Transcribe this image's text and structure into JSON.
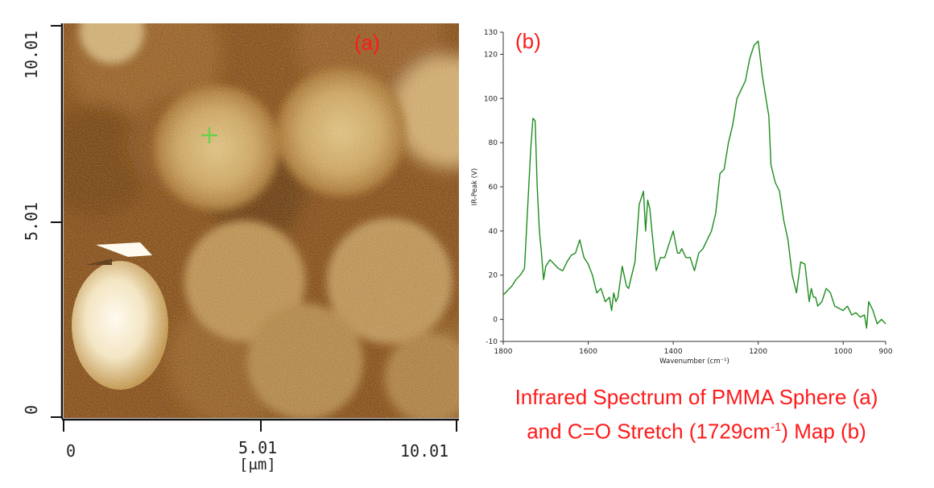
{
  "afm": {
    "panel_label": "(a)",
    "x_ticks": [
      "0",
      "5.01",
      "10.01"
    ],
    "x_unit": "[μm]",
    "y_ticks": [
      "0",
      "5.01",
      "10.01"
    ],
    "colors": {
      "dark": "#6b3503",
      "mid": "#a66b22",
      "light": "#e3c98c",
      "white": "#fbf5e6",
      "marker": "#6fcf4f"
    }
  },
  "chart_data": {
    "type": "line",
    "panel_label": "(b)",
    "xlabel": "Wavenumber (cm⁻¹)",
    "ylabel": "IR-Peak (V)",
    "xlim": [
      1800,
      900
    ],
    "ylim": [
      -10,
      130
    ],
    "x_ticks": [
      1800,
      1600,
      1400,
      1200,
      1000,
      900
    ],
    "y_ticks": [
      -10,
      0,
      20,
      40,
      60,
      80,
      100,
      120,
      130
    ],
    "line_color": "#1e8c1e",
    "series": [
      {
        "x": [
          1800,
          1790,
          1780,
          1770,
          1760,
          1750,
          1740,
          1735,
          1730,
          1725,
          1720,
          1715,
          1710,
          1705,
          1700,
          1690,
          1680,
          1670,
          1660,
          1650,
          1640,
          1630,
          1620,
          1610,
          1600,
          1590,
          1580,
          1570,
          1560,
          1550,
          1545,
          1540,
          1535,
          1530,
          1520,
          1510,
          1505,
          1500,
          1490,
          1480,
          1470,
          1465,
          1460,
          1455,
          1450,
          1445,
          1440,
          1430,
          1420,
          1410,
          1400,
          1390,
          1385,
          1380,
          1370,
          1360,
          1350,
          1340,
          1330,
          1320,
          1310,
          1300,
          1290,
          1280,
          1270,
          1260,
          1250,
          1240,
          1230,
          1220,
          1210,
          1200,
          1190,
          1180,
          1175,
          1170,
          1160,
          1150,
          1140,
          1130,
          1120,
          1110,
          1100,
          1090,
          1080,
          1075,
          1070,
          1065,
          1060,
          1050,
          1040,
          1030,
          1020,
          1010,
          1000,
          990,
          980,
          970,
          960,
          950,
          945,
          940,
          930,
          920,
          910,
          900
        ],
        "y": [
          11,
          13,
          15,
          18,
          20,
          23,
          60,
          78,
          91,
          90,
          60,
          40,
          30,
          18,
          24,
          27,
          25,
          23,
          22,
          26,
          29,
          30,
          36,
          28,
          25,
          20,
          12,
          14,
          8,
          10,
          4,
          12,
          8,
          10,
          24,
          15,
          14,
          18,
          26,
          52,
          58,
          40,
          54,
          50,
          40,
          30,
          22,
          28,
          28,
          34,
          40,
          30,
          30,
          32,
          28,
          28,
          22,
          30,
          32,
          36,
          40,
          48,
          66,
          68,
          80,
          88,
          100,
          104,
          108,
          118,
          124,
          126,
          110,
          98,
          92,
          70,
          62,
          58,
          45,
          36,
          20,
          12,
          26,
          25,
          8,
          14,
          10,
          10,
          6,
          8,
          14,
          12,
          6,
          5,
          4,
          6,
          2,
          3,
          1,
          2,
          -4,
          8,
          4,
          -2,
          0,
          -2
        ]
      }
    ]
  },
  "caption": {
    "line1": "Infrared Spectrum of PMMA Sphere (a)",
    "line2_pre": "and C=O Stretch (1729cm",
    "line2_sup": "-1",
    "line2_post": ") Map (b)"
  }
}
